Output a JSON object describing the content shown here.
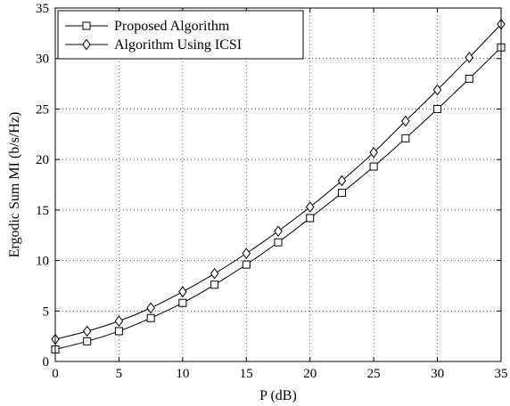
{
  "chart_data": {
    "type": "line",
    "title": "",
    "xlabel": "P (dB)",
    "ylabel": "Ergodic Sum MI (b/s/Hz)",
    "xlim": [
      0,
      35
    ],
    "ylim": [
      0,
      35
    ],
    "xticks": [
      0,
      5,
      10,
      15,
      20,
      25,
      30,
      35
    ],
    "yticks": [
      0,
      5,
      10,
      15,
      20,
      25,
      30,
      35
    ],
    "grid": true,
    "legend_position": "top-left",
    "x": [
      0,
      2.5,
      5,
      7.5,
      10,
      12.5,
      15,
      17.5,
      20,
      22.5,
      25,
      27.5,
      30,
      32.5,
      35
    ],
    "series": [
      {
        "name": "Proposed Algorithm",
        "marker": "square",
        "values": [
          1.2,
          2.0,
          3.0,
          4.3,
          5.8,
          7.6,
          9.6,
          11.8,
          14.2,
          16.7,
          19.3,
          22.1,
          25.0,
          28.0,
          31.1
        ]
      },
      {
        "name": "Algorithm Using ICSI",
        "marker": "diamond",
        "values": [
          2.2,
          3.0,
          4.0,
          5.3,
          6.9,
          8.7,
          10.7,
          12.9,
          15.3,
          17.9,
          20.7,
          23.8,
          26.9,
          30.1,
          33.4
        ]
      }
    ]
  }
}
